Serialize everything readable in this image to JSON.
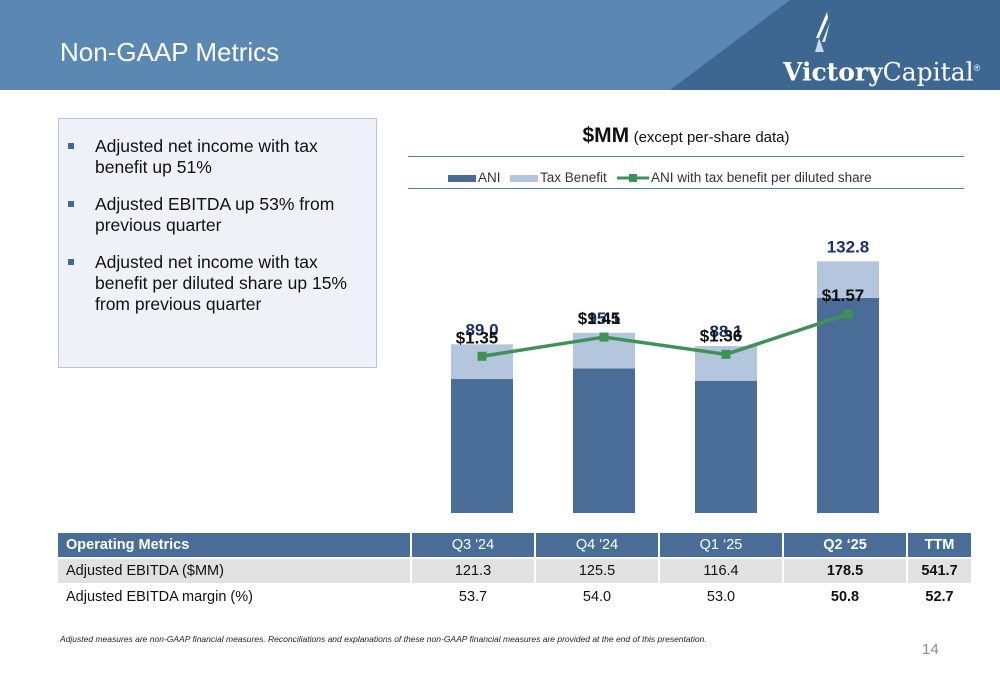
{
  "slide": {
    "title": "Non-GAAP Metrics",
    "page_number": "14"
  },
  "logo": {
    "word_bold": "Victory",
    "word_regular": "Capital",
    "registered": "®"
  },
  "bullets": [
    "Adjusted net income with tax benefit up 51%",
    "Adjusted EBITDA up 53% from previous quarter",
    "Adjusted net income with tax benefit per diluted share up 15% from previous quarter"
  ],
  "chart_header": {
    "main": "$MM",
    "sub": "(except per-share data)"
  },
  "colors": {
    "ani": "#4a6d97",
    "tax_benefit": "#b3c6dd",
    "line": "#3f9157",
    "bar_label": "#1a2f66",
    "header_dark": "#3d6790",
    "header_light": "#5b87b3"
  },
  "chart_data": {
    "type": "bar",
    "stacked": true,
    "categories": [
      "Q3 '24",
      "Q4 '24",
      "Q1 '25",
      "Q2 '25"
    ],
    "series": [
      {
        "name": "ANI",
        "values": [
          70.7,
          76.3,
          69.8,
          113.5
        ]
      },
      {
        "name": "Tax Benefit",
        "values": [
          18.3,
          18.8,
          18.3,
          19.3
        ]
      }
    ],
    "bar_totals": [
      "89.0",
      "95.1",
      "88.1",
      "132.8"
    ],
    "line_series": {
      "name": "ANI with tax benefit per diluted share",
      "values": [
        1.35,
        1.45,
        1.36,
        1.57
      ],
      "labels": [
        "$1.35",
        "$1.45",
        "$1.36",
        "$1.57"
      ]
    },
    "ylim": [
      0,
      150
    ],
    "line_ylim": [
      0.6,
      1.8
    ],
    "legend": "top",
    "grid": false
  },
  "table": {
    "headers": [
      "Operating Metrics",
      "Q3 '24",
      "Q4 '24",
      "Q1 ‘25",
      "Q2 ‘25",
      "TTM"
    ],
    "rows": [
      [
        "Adjusted EBITDA ($MM)",
        "121.3",
        "125.5",
        "116.4",
        "178.5",
        "541.7"
      ],
      [
        "Adjusted EBITDA margin (%)",
        "53.7",
        "54.0",
        "53.0",
        "50.8",
        "52.7"
      ]
    ]
  },
  "footnote": "Adjusted measures are non-GAAP financial measures.  Reconciliations and explanations of these non-GAAP financial measures are provided at the end of this presentation."
}
